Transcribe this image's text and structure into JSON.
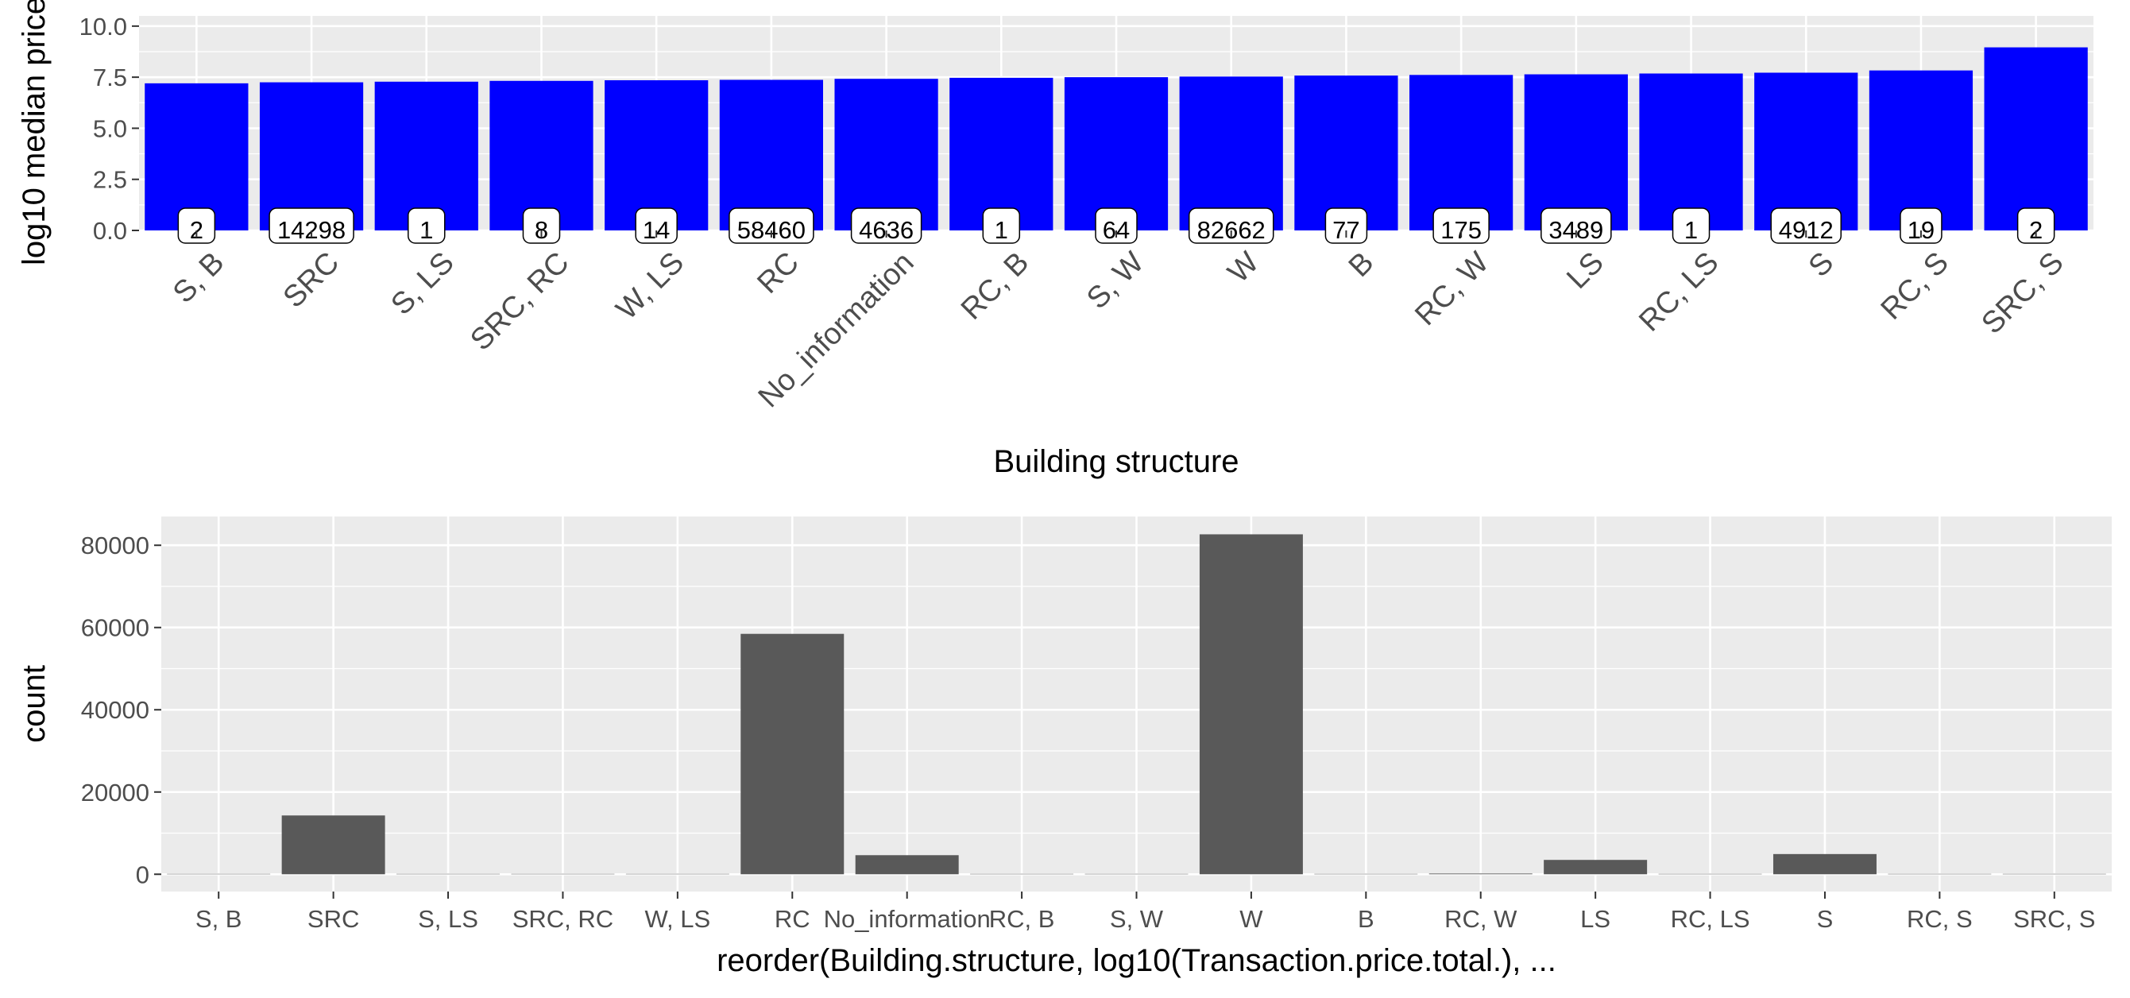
{
  "chart_data": [
    {
      "type": "bar",
      "categories": [
        "S, B",
        "SRC",
        "S, LS",
        "SRC, RC",
        "W, LS",
        "RC",
        "No_information",
        "RC, B",
        "S, W",
        "W",
        "B",
        "RC, W",
        "LS",
        "RC, LS",
        "S",
        "RC, S",
        "SRC, S"
      ],
      "values": [
        7.2,
        7.25,
        7.28,
        7.32,
        7.35,
        7.37,
        7.42,
        7.47,
        7.5,
        7.53,
        7.58,
        7.61,
        7.64,
        7.68,
        7.72,
        7.83,
        8.96
      ],
      "count_labels": [
        "2",
        "14298",
        "1",
        "8",
        "14",
        "58460",
        "4636",
        "1",
        "64",
        "82662",
        "77",
        "175",
        "3489",
        "1",
        "4912",
        "19",
        "2"
      ],
      "title": "",
      "xlabel": "Building structure",
      "ylabel": "log10 median price",
      "ylim": [
        0,
        10.5
      ],
      "yticks": [
        "0.0",
        "2.5",
        "5.0",
        "7.5",
        "10.0"
      ],
      "ytick_values": [
        0,
        2.5,
        5,
        7.5,
        10
      ],
      "bar_color": "#0000ff",
      "panel_color": "#ebebeb",
      "grid": true,
      "xtick_rotation_deg": -45
    },
    {
      "type": "bar",
      "categories": [
        "S, B",
        "SRC",
        "S, LS",
        "SRC, RC",
        "W, LS",
        "RC",
        "No_information",
        "RC, B",
        "S, W",
        "W",
        "B",
        "RC, W",
        "LS",
        "RC, LS",
        "S",
        "RC, S",
        "SRC, S"
      ],
      "values": [
        2,
        14298,
        1,
        8,
        14,
        58460,
        4636,
        1,
        64,
        82662,
        77,
        175,
        3489,
        1,
        4912,
        19,
        2
      ],
      "title": "",
      "xlabel": "reorder(Building.structure, log10(Transaction.price.total.), ...",
      "ylabel": "count",
      "ylim": [
        -4200,
        87000
      ],
      "yticks": [
        "0",
        "20000",
        "40000",
        "60000",
        "80000"
      ],
      "ytick_values": [
        0,
        20000,
        40000,
        60000,
        80000
      ],
      "bar_color": "#595959",
      "panel_color": "#ebebeb",
      "grid": true
    }
  ]
}
